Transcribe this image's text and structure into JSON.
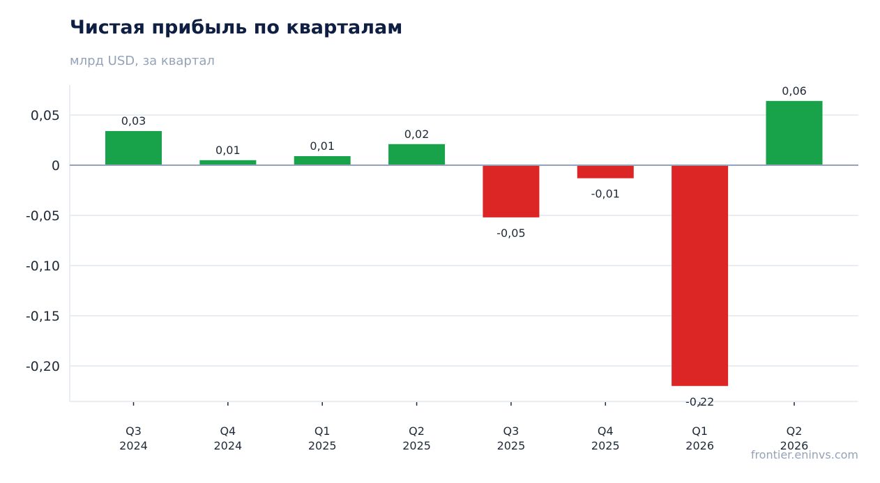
{
  "header": {
    "title": "Чистая прибыль по кварталам",
    "subtitle": "млрд USD, за квартал"
  },
  "footer": {
    "source": "frontier.eninvs.com"
  },
  "colors": {
    "positive": "#18a34a",
    "negative": "#dc2626",
    "grid": "#e2e8f0",
    "zero_line": "#94a3b8"
  },
  "chart_data": {
    "type": "bar",
    "title": "Чистая прибыль по кварталам",
    "subtitle": "млрд USD, за квартал",
    "categories": [
      [
        "Q3",
        "2024"
      ],
      [
        "Q4",
        "2024"
      ],
      [
        "Q1",
        "2025"
      ],
      [
        "Q2",
        "2025"
      ],
      [
        "Q3",
        "2025"
      ],
      [
        "Q4",
        "2025"
      ],
      [
        "Q1",
        "2026"
      ],
      [
        "Q2",
        "2026"
      ]
    ],
    "values": [
      0.034,
      0.005,
      0.009,
      0.021,
      -0.052,
      -0.013,
      -0.22,
      0.064
    ],
    "data_labels": [
      "0,03",
      "0,01",
      "0,01",
      "0,02",
      "-0,05",
      "-0,01",
      "-0,22",
      "0,06"
    ],
    "yticks": [
      0.05,
      0,
      -0.05,
      -0.1,
      -0.15,
      -0.2
    ],
    "ytick_labels": [
      "0,05",
      "0",
      "-0,05",
      "-0,10",
      "-0,15",
      "-0,20"
    ],
    "ylim": [
      -0.235,
      0.079
    ],
    "grid": true,
    "legend": "none"
  }
}
